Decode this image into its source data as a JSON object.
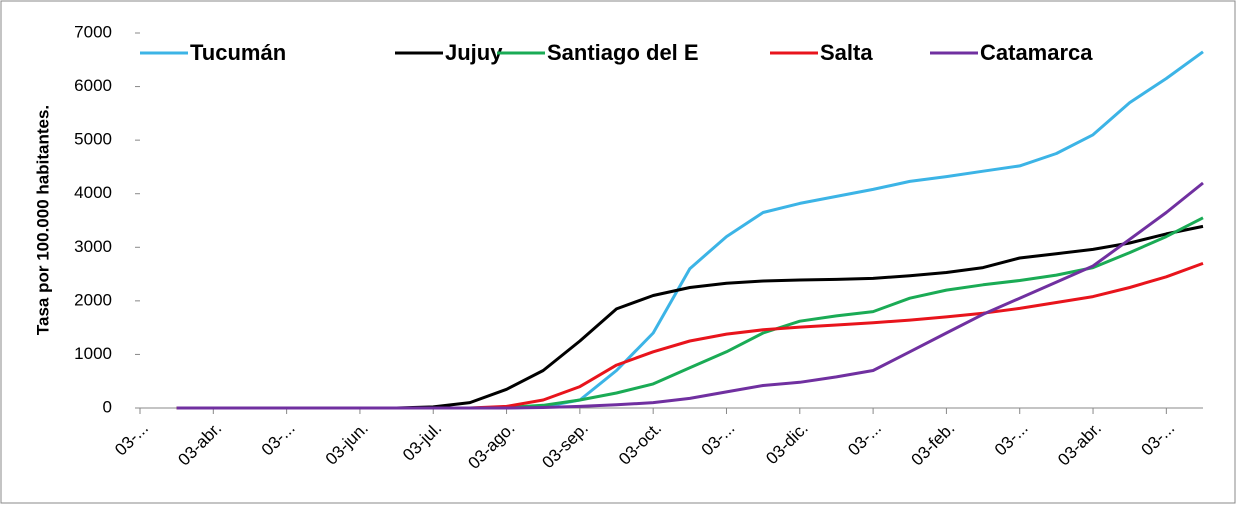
{
  "chart_data": {
    "type": "line",
    "ylabel": "Tasa  por 100.000 habitantes.",
    "categories": [
      "03-...",
      null,
      "03-abr.",
      null,
      "03-...",
      null,
      "03-jun.",
      null,
      "03-jul.",
      null,
      "03-ago.",
      null,
      "03-sep.",
      null,
      "03-oct.",
      null,
      "03-...",
      null,
      "03-dic.",
      null,
      "03-...",
      null,
      "03-feb.",
      null,
      "03-...",
      null,
      "03-abr.",
      null,
      "03-...",
      null
    ],
    "series": [
      {
        "name": "Tucumán",
        "color": "#3cb4e6",
        "values": [
          null,
          0,
          0,
          0,
          0,
          0,
          0,
          0,
          0,
          0,
          0,
          20,
          150,
          700,
          1400,
          2600,
          3200,
          3650,
          3820,
          3950,
          4080,
          4230,
          4320,
          4420,
          4520,
          4750,
          5100,
          5700,
          6150,
          6650
        ]
      },
      {
        "name": "Jujuy",
        "color": "#000000",
        "values": [
          null,
          0,
          0,
          0,
          0,
          0,
          0,
          0,
          20,
          100,
          350,
          700,
          1250,
          1850,
          2100,
          2250,
          2330,
          2370,
          2390,
          2400,
          2420,
          2470,
          2530,
          2620,
          2800,
          2880,
          2960,
          3080,
          3250,
          3390
        ]
      },
      {
        "name": "Santiago del E",
        "color": "#1aab55",
        "values": [
          null,
          0,
          0,
          0,
          0,
          0,
          0,
          0,
          0,
          0,
          10,
          50,
          150,
          280,
          450,
          750,
          1050,
          1400,
          1620,
          1720,
          1800,
          2050,
          2200,
          2300,
          2380,
          2480,
          2620,
          2900,
          3200,
          3550
        ]
      },
      {
        "name": "Salta",
        "color": "#e8141c",
        "values": [
          null,
          0,
          0,
          0,
          0,
          0,
          0,
          0,
          0,
          0,
          30,
          150,
          400,
          800,
          1050,
          1250,
          1380,
          1460,
          1510,
          1550,
          1590,
          1640,
          1700,
          1770,
          1860,
          1970,
          2080,
          2250,
          2450,
          2700
        ]
      },
      {
        "name": "Catamarca",
        "color": "#7030a0",
        "values": [
          null,
          0,
          0,
          0,
          0,
          0,
          0,
          0,
          0,
          0,
          0,
          10,
          30,
          60,
          100,
          180,
          300,
          420,
          480,
          580,
          700,
          1050,
          1400,
          1750,
          2050,
          2350,
          2650,
          3150,
          3650,
          4200
        ]
      }
    ],
    "ylim": [
      0,
      7000
    ],
    "yticks": [
      0,
      1000,
      2000,
      3000,
      4000,
      5000,
      6000,
      7000
    ],
    "grid": false,
    "legend": "top"
  }
}
